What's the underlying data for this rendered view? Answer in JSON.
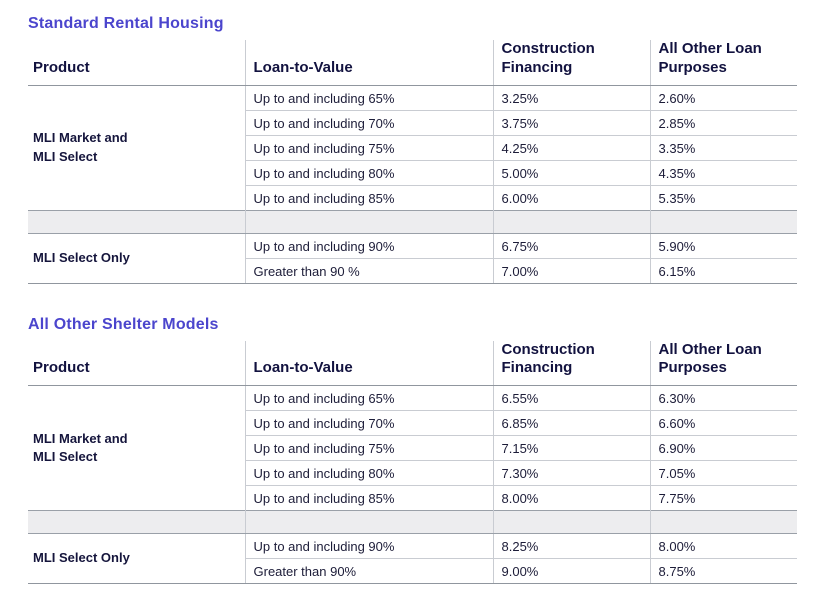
{
  "colors": {
    "title": "#4b45cd",
    "header_text": "#12123f",
    "body_text": "#1c1c38",
    "border_strong": "#90969e",
    "border_light": "#c9ccd2",
    "separator_row_bg": "#ededef",
    "page_bg": "#ffffff"
  },
  "sections": [
    {
      "title": "Standard Rental Housing",
      "columns": {
        "product": "Product",
        "ltv": "Loan-to-Value",
        "construction": "Construction Financing",
        "other": "All Other Loan Purposes"
      },
      "groups": [
        {
          "product": "MLI Market and\nMLI Select",
          "rows": [
            {
              "ltv": "Up to and including 65%",
              "construction": "3.25%",
              "other": "2.60%"
            },
            {
              "ltv": "Up to and including 70%",
              "construction": "3.75%",
              "other": "2.85%"
            },
            {
              "ltv": "Up to and including 75%",
              "construction": "4.25%",
              "other": "3.35%"
            },
            {
              "ltv": "Up to and including 80%",
              "construction": "5.00%",
              "other": "4.35%"
            },
            {
              "ltv": "Up to and including 85%",
              "construction": "6.00%",
              "other": "5.35%"
            }
          ]
        },
        {
          "product": "MLI Select Only",
          "rows": [
            {
              "ltv": "Up to and including 90%",
              "construction": "6.75%",
              "other": "5.90%"
            },
            {
              "ltv": "Greater than 90 %",
              "construction": "7.00%",
              "other": "6.15%"
            }
          ]
        }
      ]
    },
    {
      "title": "All Other Shelter Models",
      "columns": {
        "product": "Product",
        "ltv": "Loan-to-Value",
        "construction": "Construction Financing",
        "other": "All Other Loan Purposes"
      },
      "groups": [
        {
          "product": "MLI Market and\nMLI Select",
          "rows": [
            {
              "ltv": "Up to and including 65%",
              "construction": "6.55%",
              "other": "6.30%"
            },
            {
              "ltv": "Up to and including 70%",
              "construction": "6.85%",
              "other": "6.60%"
            },
            {
              "ltv": "Up to and including 75%",
              "construction": "7.15%",
              "other": "6.90%"
            },
            {
              "ltv": "Up to and including 80%",
              "construction": "7.30%",
              "other": "7.05%"
            },
            {
              "ltv": "Up to and including 85%",
              "construction": "8.00%",
              "other": "7.75%"
            }
          ]
        },
        {
          "product": "MLI Select Only",
          "rows": [
            {
              "ltv": "Up to and including 90%",
              "construction": "8.25%",
              "other": "8.00%"
            },
            {
              "ltv": "Greater than 90%",
              "construction": "9.00%",
              "other": "8.75%"
            }
          ]
        }
      ]
    }
  ]
}
